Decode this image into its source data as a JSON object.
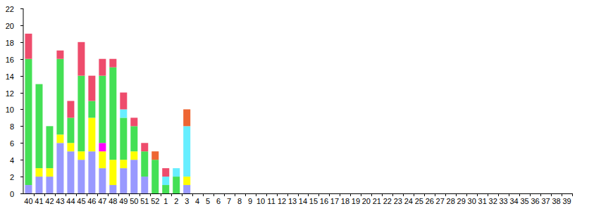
{
  "chart_data": {
    "type": "bar",
    "stacked": true,
    "grid": false,
    "categories": [
      "40",
      "41",
      "42",
      "43",
      "44",
      "45",
      "46",
      "47",
      "48",
      "49",
      "50",
      "51",
      "52",
      "1",
      "2",
      "3",
      "4",
      "5",
      "6",
      "7",
      "8",
      "9",
      "10",
      "11",
      "12",
      "13",
      "14",
      "15",
      "16",
      "17",
      "18",
      "19",
      "20",
      "21",
      "22",
      "23",
      "24",
      "25",
      "26",
      "27",
      "28",
      "29",
      "30",
      "31",
      "32",
      "33",
      "34",
      "35",
      "36",
      "37",
      "38",
      "39"
    ],
    "ylim": [
      0,
      22
    ],
    "yticks": [
      0,
      2,
      4,
      6,
      8,
      10,
      12,
      14,
      16,
      18,
      20,
      22
    ],
    "series": [
      {
        "color": "#9999ff",
        "values": [
          1,
          2,
          2,
          6,
          5,
          4,
          5,
          3,
          1,
          3,
          4,
          2,
          0,
          0,
          0,
          1,
          0,
          0,
          0,
          0,
          0,
          0,
          0,
          0,
          0,
          0,
          0,
          0,
          0,
          0,
          0,
          0,
          0,
          0,
          0,
          0,
          0,
          0,
          0,
          0,
          0,
          0,
          0,
          0,
          0,
          0,
          0,
          0,
          0,
          0,
          0,
          0
        ]
      },
      {
        "color": "#ffff00",
        "values": [
          0,
          1,
          1,
          1,
          1,
          1,
          4,
          2,
          3,
          1,
          1,
          0,
          0,
          0,
          0,
          1,
          0,
          0,
          0,
          0,
          0,
          0,
          0,
          0,
          0,
          0,
          0,
          0,
          0,
          0,
          0,
          0,
          0,
          0,
          0,
          0,
          0,
          0,
          0,
          0,
          0,
          0,
          0,
          0,
          0,
          0,
          0,
          0,
          0,
          0,
          0,
          0
        ]
      },
      {
        "color": "#ff00ff",
        "values": [
          0,
          0,
          0,
          0,
          0,
          0,
          0,
          1,
          0,
          0,
          0,
          0,
          0,
          0,
          0,
          0,
          0,
          0,
          0,
          0,
          0,
          0,
          0,
          0,
          0,
          0,
          0,
          0,
          0,
          0,
          0,
          0,
          0,
          0,
          0,
          0,
          0,
          0,
          0,
          0,
          0,
          0,
          0,
          0,
          0,
          0,
          0,
          0,
          0,
          0,
          0,
          0
        ]
      },
      {
        "color": "#44e055",
        "values": [
          15,
          10,
          5,
          9,
          3,
          9,
          2,
          8,
          11,
          5,
          3,
          3,
          4,
          1,
          2,
          0,
          0,
          0,
          0,
          0,
          0,
          0,
          0,
          0,
          0,
          0,
          0,
          0,
          0,
          0,
          0,
          0,
          0,
          0,
          0,
          0,
          0,
          0,
          0,
          0,
          0,
          0,
          0,
          0,
          0,
          0,
          0,
          0,
          0,
          0,
          0,
          0
        ]
      },
      {
        "color": "#66eeff",
        "values": [
          0,
          0,
          0,
          0,
          0,
          0,
          0,
          0,
          0,
          1,
          0,
          0,
          0,
          1,
          1,
          6,
          0,
          0,
          0,
          0,
          0,
          0,
          0,
          0,
          0,
          0,
          0,
          0,
          0,
          0,
          0,
          0,
          0,
          0,
          0,
          0,
          0,
          0,
          0,
          0,
          0,
          0,
          0,
          0,
          0,
          0,
          0,
          0,
          0,
          0,
          0,
          0
        ]
      },
      {
        "color": "#ee4c6c",
        "values": [
          3,
          0,
          0,
          1,
          2,
          4,
          3,
          2,
          1,
          2,
          1,
          1,
          0,
          1,
          0,
          0,
          0,
          0,
          0,
          0,
          0,
          0,
          0,
          0,
          0,
          0,
          0,
          0,
          0,
          0,
          0,
          0,
          0,
          0,
          0,
          0,
          0,
          0,
          0,
          0,
          0,
          0,
          0,
          0,
          0,
          0,
          0,
          0,
          0,
          0,
          0,
          0
        ]
      },
      {
        "color": "#ee6633",
        "values": [
          0,
          0,
          0,
          0,
          0,
          0,
          0,
          0,
          0,
          0,
          0,
          0,
          1,
          0,
          0,
          2,
          0,
          0,
          0,
          0,
          0,
          0,
          0,
          0,
          0,
          0,
          0,
          0,
          0,
          0,
          0,
          0,
          0,
          0,
          0,
          0,
          0,
          0,
          0,
          0,
          0,
          0,
          0,
          0,
          0,
          0,
          0,
          0,
          0,
          0,
          0,
          0
        ]
      }
    ]
  }
}
